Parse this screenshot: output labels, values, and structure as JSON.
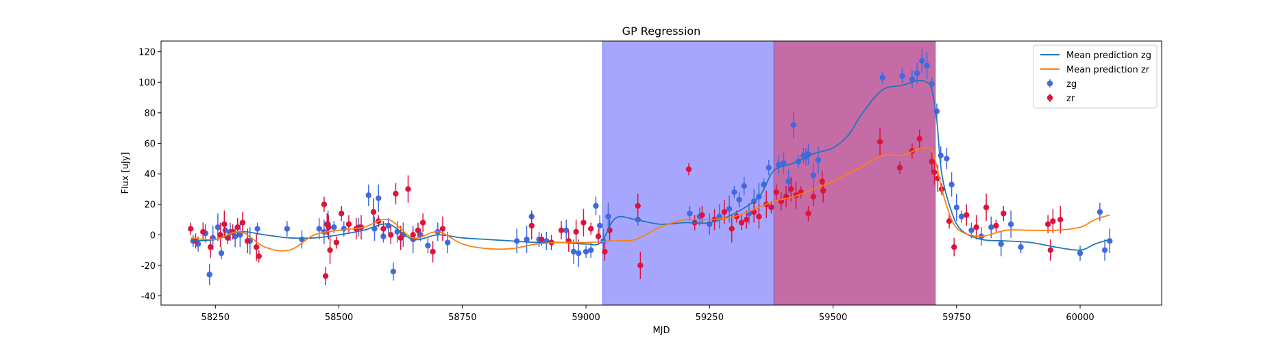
{
  "chart_data": {
    "type": "scatter",
    "title": "GP Regression",
    "xlabel": "MJD",
    "ylabel": "Flux [uJy]",
    "xlim": [
      58140,
      60165
    ],
    "ylim": [
      -46,
      127
    ],
    "xticks": [
      58250,
      58500,
      58750,
      59000,
      59250,
      59500,
      59750,
      60000
    ],
    "yticks": [
      -40,
      -20,
      0,
      20,
      40,
      60,
      80,
      100,
      120
    ],
    "grid": false,
    "legend_position": "top-right",
    "shaded_regions": [
      {
        "x0": 59034,
        "x1": 59380,
        "color": "#a6a6fe"
      },
      {
        "x0": 59380,
        "x1": 59707,
        "color": "#c56ba6"
      }
    ],
    "series": [
      {
        "name": "Mean prediction zg",
        "kind": "line",
        "color": "#1f77b4",
        "x": [
          58200,
          58250,
          58300,
          58350,
          58400,
          58450,
          58500,
          58550,
          58600,
          58650,
          58700,
          58750,
          58800,
          58850,
          58900,
          58950,
          59000,
          59030,
          59060,
          59100,
          59150,
          59200,
          59250,
          59300,
          59350,
          59380,
          59420,
          59460,
          59500,
          59530,
          59560,
          59600,
          59640,
          59670,
          59690,
          59700,
          59710,
          59720,
          59740,
          59760,
          59800,
          59850,
          59900,
          59950,
          60000,
          60030,
          60060
        ],
        "y": [
          -4,
          -3,
          2,
          0,
          -2,
          -2,
          0,
          3,
          7,
          -3,
          0,
          -2,
          -3,
          -4,
          -5,
          -5,
          -6,
          -5,
          11,
          10,
          7,
          8,
          8,
          14,
          25,
          42,
          47,
          53,
          57,
          65,
          80,
          95,
          98,
          101,
          100,
          95,
          75,
          40,
          15,
          3,
          -3,
          -4,
          -5,
          -8,
          -10,
          -6,
          -3
        ]
      },
      {
        "name": "Mean prediction zr",
        "kind": "line",
        "color": "#ff7f0e",
        "x": [
          58200,
          58250,
          58300,
          58350,
          58400,
          58450,
          58500,
          58550,
          58600,
          58650,
          58700,
          58750,
          58800,
          58850,
          58900,
          58950,
          59000,
          59050,
          59100,
          59150,
          59200,
          59250,
          59300,
          59350,
          59380,
          59420,
          59460,
          59500,
          59530,
          59560,
          59600,
          59640,
          59670,
          59690,
          59700,
          59710,
          59720,
          59740,
          59760,
          59800,
          59850,
          59900,
          59950,
          60000,
          60030,
          60060
        ],
        "y": [
          -2,
          -3,
          2,
          -8,
          -10,
          0,
          3,
          5,
          10,
          -2,
          2,
          -6,
          -9,
          -9,
          -6,
          -5,
          -5,
          -4,
          -3,
          5,
          10,
          10,
          12,
          18,
          22,
          25,
          30,
          35,
          40,
          45,
          52,
          52,
          56,
          57,
          55,
          45,
          30,
          10,
          2,
          -1,
          3,
          3,
          3,
          5,
          10,
          13
        ]
      },
      {
        "name": "zg",
        "kind": "errorbar",
        "color": "#4169e1",
        "x": [
          58205,
          58215,
          58230,
          58238,
          58245,
          58255,
          58262,
          58270,
          58280,
          58290,
          58300,
          58320,
          58335,
          58395,
          58425,
          58460,
          58470,
          58478,
          58490,
          58510,
          58540,
          58560,
          58572,
          58580,
          58590,
          58600,
          58610,
          58618,
          58630,
          58650,
          58665,
          58680,
          58700,
          58720,
          58860,
          58880,
          58890,
          58905,
          58920,
          58960,
          58975,
          58985,
          59000,
          59010,
          59020,
          59028,
          59035,
          59045,
          59105,
          59210,
          59230,
          59250,
          59270,
          59290,
          59300,
          59310,
          59320,
          59330,
          59340,
          59350,
          59360,
          59370,
          59390,
          59400,
          59410,
          59420,
          59430,
          59440,
          59445,
          59450,
          59460,
          59470,
          59600,
          59640,
          59660,
          59670,
          59680,
          59690,
          59700,
          59710,
          59718,
          59730,
          59740,
          59750,
          59760,
          59780,
          59800,
          59820,
          59840,
          59860,
          59880,
          60000,
          60040,
          60050,
          60060
        ],
        "y": [
          -4,
          -6,
          1,
          -26,
          -2,
          5,
          -12,
          3,
          2,
          -1,
          0,
          -4,
          4,
          4,
          -3,
          4,
          2,
          7,
          5,
          4,
          5,
          26,
          4,
          24,
          -1,
          6,
          -24,
          2,
          0,
          -3,
          0,
          -7,
          2,
          -5,
          -4,
          -3,
          12,
          -3,
          -4,
          3,
          -11,
          -12,
          -11,
          -10,
          19,
          6,
          -4,
          12,
          10,
          14,
          12,
          7,
          12,
          17,
          28,
          23,
          32,
          14,
          22,
          25,
          33,
          44,
          46,
          47,
          35,
          72,
          48,
          52,
          51,
          53,
          39,
          49,
          103,
          104,
          102,
          106,
          114,
          111,
          99,
          81,
          52,
          50,
          33,
          18,
          12,
          3,
          -1,
          5,
          -6,
          7,
          -8,
          -12,
          15,
          -10,
          -4
        ]
      },
      {
        "name": "zr",
        "kind": "errorbar",
        "color": "#dc143c",
        "x": [
          58200,
          58210,
          58225,
          58240,
          58260,
          58268,
          58275,
          58285,
          58295,
          58305,
          58315,
          58333,
          58338,
          58470,
          58473,
          58476,
          58479,
          58482,
          58495,
          58505,
          58520,
          58535,
          58545,
          58570,
          58580,
          58590,
          58605,
          58615,
          58625,
          58640,
          58650,
          58660,
          58670,
          58690,
          58710,
          58890,
          58910,
          58930,
          58950,
          58965,
          58980,
          58995,
          59010,
          59025,
          59038,
          59048,
          59105,
          59110,
          59208,
          59220,
          59235,
          59260,
          59280,
          59295,
          59305,
          59315,
          59325,
          59340,
          59350,
          59365,
          59375,
          59385,
          59395,
          59405,
          59415,
          59425,
          59435,
          59450,
          59460,
          59478,
          59480,
          59595,
          59635,
          59660,
          59675,
          59700,
          59705,
          59712,
          59720,
          59735,
          59745,
          59770,
          59790,
          59810,
          59830,
          59845,
          59935,
          59940,
          59945,
          59960
        ],
        "y": [
          4,
          -4,
          2,
          -8,
          0,
          7,
          -2,
          2,
          5,
          8,
          -4,
          -8,
          -14,
          20,
          -27,
          7,
          5,
          -10,
          -5,
          14,
          7,
          4,
          5,
          15,
          9,
          4,
          0,
          27,
          -2,
          30,
          0,
          3,
          8,
          -11,
          4,
          6,
          -3,
          -5,
          3,
          -4,
          2,
          8,
          4,
          -1,
          -11,
          3,
          19,
          -20,
          43,
          8,
          13,
          10,
          15,
          4,
          12,
          8,
          10,
          15,
          12,
          20,
          18,
          28,
          22,
          25,
          30,
          26,
          28,
          14,
          25,
          35,
          29,
          61,
          44,
          55,
          63,
          48,
          41,
          37,
          30,
          9,
          -8,
          13,
          5,
          18,
          6,
          14,
          7,
          -10,
          9,
          10
        ]
      }
    ]
  }
}
